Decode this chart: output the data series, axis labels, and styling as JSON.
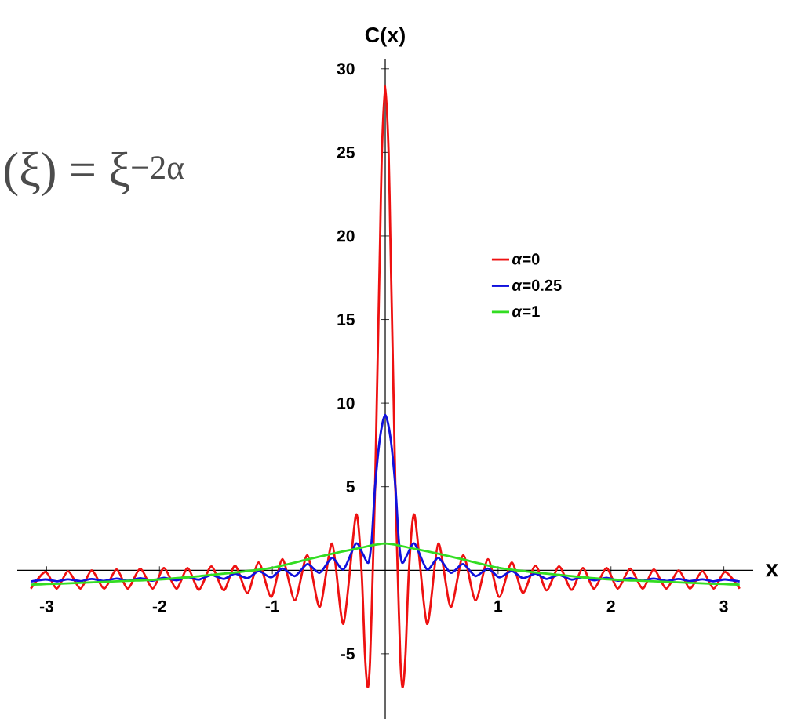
{
  "chart_data": {
    "type": "line",
    "xlabel": "x",
    "ylabel": "C(x)",
    "annotations": [
      "(ξ) = ξ$^{−2α}$"
    ],
    "xlim": [
      -3.26,
      3.26
    ],
    "ylim": [
      -8.9,
      30.6
    ],
    "xticks": [
      -3,
      -2,
      -1,
      1,
      2,
      3
    ],
    "yticks": [
      -5,
      5,
      10,
      15,
      20,
      25,
      30
    ],
    "legend": "top right",
    "series": [
      {
        "name": "*α*=0",
        "color": "#ee1111",
        "x": [
          -3.14,
          -3.01,
          -2.91,
          -2.81,
          -2.7,
          -2.6,
          -2.49,
          -2.38,
          -2.28,
          -2.17,
          -2.06,
          -1.96,
          -1.85,
          -1.75,
          -1.65,
          -1.54,
          -1.43,
          -1.33,
          -1.22,
          -1.12,
          -1.01,
          -0.91,
          -0.8,
          -0.69,
          -0.58,
          -0.47,
          -0.37,
          -0.26,
          -0.21,
          -0.18,
          -0.155,
          -0.135,
          -0.11,
          -0.09,
          -0.075,
          -0.06,
          -0.045,
          -0.03,
          0,
          0.03,
          0.045,
          0.06,
          0.075,
          0.09,
          0.11,
          0.135,
          0.155,
          0.18,
          0.21,
          0.26,
          0.37,
          0.47,
          0.58,
          0.69,
          0.8,
          0.91,
          1.01,
          1.12,
          1.22,
          1.33,
          1.43,
          1.54,
          1.65,
          1.75,
          1.85,
          1.96,
          2.06,
          2.17,
          2.28,
          2.38,
          2.49,
          2.6,
          2.7,
          2.81,
          2.91,
          3.01,
          3.14
        ],
        "values": [
          -1.1,
          -0.1,
          -1.1,
          -0.05,
          -1.1,
          0,
          -1.1,
          0.05,
          -1.1,
          0.1,
          -1.1,
          0.14,
          -1.1,
          0.14,
          -1.17,
          0.23,
          -1.2,
          0.28,
          -1.36,
          0.47,
          -1.6,
          0.66,
          -1.8,
          0.9,
          -2.2,
          1.6,
          -3.2,
          3.3,
          0,
          -5,
          -7,
          -5.5,
          0,
          5,
          10,
          15,
          20,
          25,
          29,
          25,
          20,
          15,
          10,
          5,
          0,
          -5.5,
          -7,
          -5,
          0,
          3.3,
          -3.2,
          1.6,
          -2.2,
          0.9,
          -1.8,
          0.66,
          -1.6,
          0.47,
          -1.36,
          0.28,
          -1.2,
          0.23,
          -1.17,
          0.14,
          -1.1,
          0.14,
          -1.1,
          0.1,
          -1.1,
          0.05,
          -1.1,
          0,
          -1.1,
          -0.05,
          -1.1,
          -0.1,
          -1.1
        ]
      },
      {
        "name": "*α*=0.25",
        "color": "#1111dd",
        "x": [
          -3.14,
          -3.01,
          -2.91,
          -2.81,
          -2.7,
          -2.6,
          -2.49,
          -2.38,
          -2.28,
          -2.17,
          -2.06,
          -1.96,
          -1.85,
          -1.75,
          -1.65,
          -1.54,
          -1.43,
          -1.33,
          -1.22,
          -1.12,
          -1.01,
          -0.91,
          -0.8,
          -0.69,
          -0.58,
          -0.47,
          -0.37,
          -0.26,
          -0.2,
          -0.15,
          -0.12,
          -0.09,
          -0.045,
          0,
          0.045,
          0.09,
          0.12,
          0.15,
          0.2,
          0.26,
          0.37,
          0.47,
          0.58,
          0.69,
          0.8,
          0.91,
          1.01,
          1.12,
          1.22,
          1.33,
          1.43,
          1.54,
          1.65,
          1.75,
          1.85,
          1.96,
          2.06,
          2.17,
          2.28,
          2.38,
          2.49,
          2.6,
          2.7,
          2.81,
          2.91,
          3.01,
          3.14
        ],
        "values": [
          -0.67,
          -0.55,
          -0.66,
          -0.54,
          -0.65,
          -0.52,
          -0.64,
          -0.5,
          -0.63,
          -0.48,
          -0.62,
          -0.45,
          -0.6,
          -0.4,
          -0.56,
          -0.28,
          -0.52,
          -0.2,
          -0.47,
          -0.05,
          -0.43,
          0.1,
          -0.35,
          0.37,
          -0.15,
          0.75,
          0.05,
          1.6,
          1.0,
          0.45,
          1.8,
          5,
          8,
          9.3,
          8,
          5,
          1.8,
          0.45,
          1.0,
          1.6,
          0.05,
          0.75,
          -0.15,
          0.37,
          -0.35,
          0.1,
          -0.43,
          -0.05,
          -0.47,
          -0.2,
          -0.52,
          -0.28,
          -0.56,
          -0.4,
          -0.6,
          -0.45,
          -0.62,
          -0.48,
          -0.63,
          -0.5,
          -0.64,
          -0.52,
          -0.65,
          -0.54,
          -0.66,
          -0.55,
          -0.67
        ]
      },
      {
        "name": "*α*=1",
        "color": "#33dd22",
        "x": [
          -3.14,
          -3,
          -2.75,
          -2.5,
          -2.25,
          -2,
          -1.75,
          -1.5,
          -1.25,
          -1,
          -0.75,
          -0.5,
          -0.25,
          0,
          0.25,
          0.5,
          0.75,
          1,
          1.25,
          1.5,
          1.75,
          2,
          2.25,
          2.5,
          2.75,
          3,
          3.14
        ],
        "values": [
          -0.86,
          -0.83,
          -0.77,
          -0.7,
          -0.63,
          -0.55,
          -0.42,
          -0.25,
          -0.07,
          0.15,
          0.55,
          0.95,
          1.3,
          1.6,
          1.3,
          0.95,
          0.55,
          0.15,
          -0.07,
          -0.25,
          -0.42,
          -0.55,
          -0.63,
          -0.7,
          -0.77,
          -0.83,
          -0.86
        ]
      }
    ]
  }
}
